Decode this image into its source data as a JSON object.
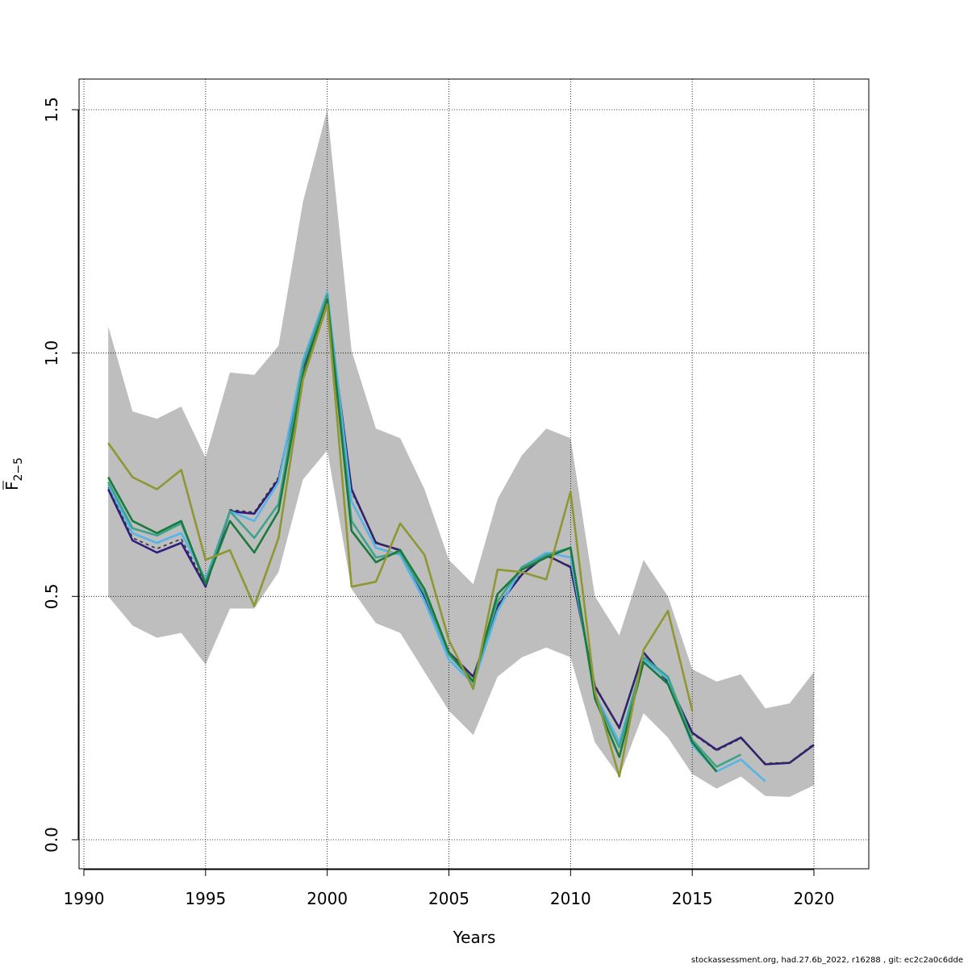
{
  "chart_data": {
    "type": "line",
    "title": "",
    "xlabel": "Years",
    "ylabel": "F",
    "ylabel_subscript": "2−5",
    "xlim": [
      1990,
      2022
    ],
    "ylim": [
      -0.05,
      1.56
    ],
    "x_ticks": [
      1990,
      1995,
      2000,
      2005,
      2010,
      2015,
      2020
    ],
    "y_ticks": [
      0.0,
      0.5,
      1.0,
      1.5
    ],
    "x_tick_labels": [
      "1990",
      "1995",
      "2000",
      "2005",
      "2010",
      "2015",
      "2020"
    ],
    "y_tick_labels": [
      "0.0",
      "0.5",
      "1.0",
      "1.5"
    ],
    "grid": true,
    "confidence_band": {
      "color": "#bebebe",
      "x": [
        1991,
        1992,
        1993,
        1994,
        1995,
        1996,
        1997,
        1998,
        1999,
        2000,
        2001,
        2002,
        2003,
        2004,
        2005,
        2006,
        2007,
        2008,
        2009,
        2010,
        2011,
        2012,
        2013,
        2014,
        2015,
        2016,
        2017,
        2018,
        2019,
        2020
      ],
      "upper": [
        1.055,
        0.88,
        0.865,
        0.89,
        0.785,
        0.96,
        0.955,
        1.015,
        1.31,
        1.5,
        1.005,
        0.845,
        0.825,
        0.72,
        0.575,
        0.525,
        0.7,
        0.79,
        0.845,
        0.825,
        0.5,
        0.42,
        0.575,
        0.5,
        0.35,
        0.325,
        0.34,
        0.27,
        0.28,
        0.345
      ],
      "lower": [
        0.5,
        0.44,
        0.415,
        0.425,
        0.36,
        0.475,
        0.475,
        0.55,
        0.74,
        0.8,
        0.515,
        0.445,
        0.425,
        0.345,
        0.265,
        0.215,
        0.335,
        0.375,
        0.395,
        0.375,
        0.2,
        0.13,
        0.26,
        0.21,
        0.135,
        0.105,
        0.13,
        0.09,
        0.088,
        0.112
      ]
    },
    "series": [
      {
        "color": "#2f1e80",
        "dashed": false,
        "x": [
          1991,
          1992,
          1993,
          1994,
          1995,
          1996,
          1997,
          1998,
          1999,
          2000,
          2001,
          2002,
          2003,
          2004,
          2005,
          2006,
          2007,
          2008,
          2009,
          2010,
          2011,
          2012,
          2013,
          2014,
          2015,
          2016,
          2017,
          2018,
          2019,
          2020
        ],
        "values": [
          0.72,
          0.615,
          0.59,
          0.61,
          0.52,
          0.675,
          0.67,
          0.74,
          0.97,
          1.105,
          0.72,
          0.61,
          0.595,
          0.5,
          0.385,
          0.335,
          0.48,
          0.545,
          0.585,
          0.56,
          0.315,
          0.23,
          0.385,
          0.325,
          0.22,
          0.185,
          0.21,
          0.155,
          0.158,
          0.195
        ]
      },
      {
        "color": "#333333",
        "dashed": true,
        "x": [
          1991,
          1992,
          1993,
          1994,
          1995,
          1996,
          1997,
          1998,
          1999,
          2000,
          2001,
          2002,
          2003,
          2004,
          2005,
          2006,
          2007,
          2008,
          2009,
          2010,
          2011,
          2012,
          2013,
          2014,
          2015,
          2016,
          2017,
          2018,
          2019,
          2020
        ],
        "values": [
          0.725,
          0.62,
          0.598,
          0.618,
          0.525,
          0.678,
          0.673,
          0.745,
          0.972,
          1.105,
          0.715,
          0.612,
          0.593,
          0.502,
          0.385,
          0.333,
          0.482,
          0.548,
          0.583,
          0.562,
          0.318,
          0.228,
          0.383,
          0.322,
          0.218,
          0.183,
          0.208,
          0.157,
          0.159,
          0.197
        ]
      },
      {
        "color": "#56b4e9",
        "dashed": false,
        "x": [
          1991,
          1992,
          1993,
          1994,
          1995,
          1996,
          1997,
          1998,
          1999,
          2000,
          2001,
          2002,
          2003,
          2004,
          2005,
          2006,
          2007,
          2008,
          2009,
          2010,
          2011,
          2012,
          2013,
          2014,
          2015,
          2016,
          2017,
          2018
        ],
        "values": [
          0.73,
          0.63,
          0.61,
          0.63,
          0.535,
          0.675,
          0.655,
          0.735,
          0.985,
          1.125,
          0.695,
          0.6,
          0.585,
          0.49,
          0.37,
          0.32,
          0.47,
          0.56,
          0.59,
          0.58,
          0.3,
          0.2,
          0.37,
          0.33,
          0.195,
          0.14,
          0.165,
          0.12
        ]
      },
      {
        "color": "#3ea38a",
        "dashed": false,
        "x": [
          1991,
          1992,
          1993,
          1994,
          1995,
          1996,
          1997,
          1998,
          1999,
          2000,
          2001,
          2002,
          2003,
          2004,
          2005,
          2006,
          2007,
          2008,
          2009,
          2010,
          2011,
          2012,
          2013,
          2014,
          2015,
          2016,
          2017
        ],
        "values": [
          0.735,
          0.64,
          0.625,
          0.65,
          0.53,
          0.675,
          0.62,
          0.69,
          0.975,
          1.12,
          0.655,
          0.58,
          0.59,
          0.505,
          0.38,
          0.325,
          0.49,
          0.56,
          0.585,
          0.6,
          0.295,
          0.19,
          0.375,
          0.335,
          0.205,
          0.15,
          0.175
        ]
      },
      {
        "color": "#1a7a3c",
        "dashed": false,
        "x": [
          1991,
          1992,
          1993,
          1994,
          1995,
          1996,
          1997,
          1998,
          1999,
          2000,
          2001,
          2002,
          2003,
          2004,
          2005,
          2006,
          2007,
          2008,
          2009,
          2010,
          2011,
          2012,
          2013,
          2014,
          2015,
          2016
        ],
        "values": [
          0.745,
          0.655,
          0.63,
          0.655,
          0.525,
          0.655,
          0.59,
          0.675,
          0.955,
          1.11,
          0.635,
          0.57,
          0.595,
          0.515,
          0.385,
          0.325,
          0.505,
          0.555,
          0.58,
          0.6,
          0.29,
          0.17,
          0.365,
          0.32,
          0.2,
          0.14
        ]
      },
      {
        "color": "#8f9732",
        "dashed": false,
        "x": [
          1991,
          1992,
          1993,
          1994,
          1995,
          1996,
          1997,
          1998,
          1999,
          2000,
          2001,
          2002,
          2003,
          2004,
          2005,
          2006,
          2007,
          2008,
          2009,
          2010,
          2011,
          2012,
          2013,
          2014,
          2015
        ],
        "values": [
          0.815,
          0.745,
          0.72,
          0.76,
          0.575,
          0.595,
          0.48,
          0.62,
          0.945,
          1.1,
          0.52,
          0.53,
          0.65,
          0.585,
          0.41,
          0.31,
          0.555,
          0.55,
          0.535,
          0.715,
          0.305,
          0.13,
          0.39,
          0.47,
          0.265
        ]
      }
    ]
  },
  "footer": {
    "text": "stockassessment.org, had.27.6b_2022, r16288 , git: ec2c2a0c6dde"
  }
}
